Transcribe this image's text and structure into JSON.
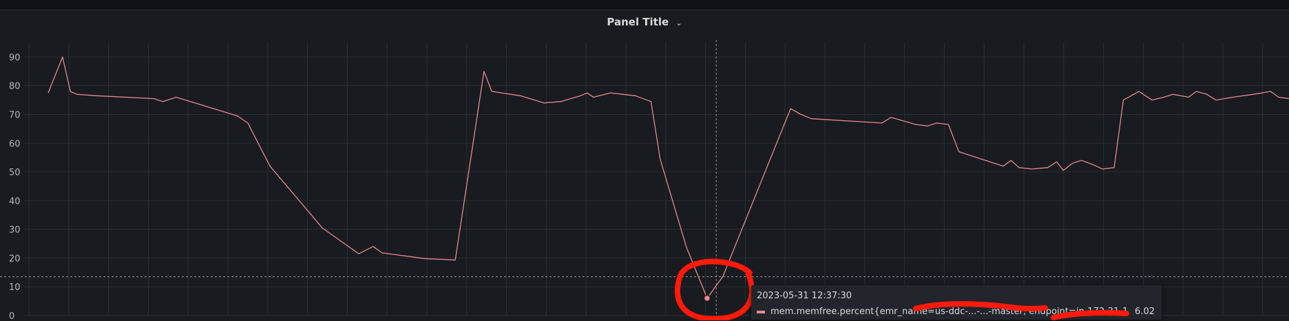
{
  "panel": {
    "title": "Panel Title",
    "chevron_icon": "chevron-down-icon"
  },
  "colors": {
    "series": "#ea8b8b",
    "annotation": "#ff1a0a",
    "grid": "#2b2e33",
    "text": "#b7b8ba"
  },
  "tooltip": {
    "time": "2023-05-31 12:37:30",
    "series_label": "mem.memfree.percent{emr_name=us-ddc-...-...-master, endpoint=ip-172-31-177-90}",
    "value": "6.02"
  },
  "chart_data": {
    "type": "line",
    "title": "Panel Title",
    "ylim": [
      0,
      95
    ],
    "yticks": [
      0,
      10,
      20,
      30,
      40,
      50,
      60,
      70,
      80,
      90
    ],
    "grid": true,
    "legend": "hidden",
    "crosshair": {
      "x": 51.2,
      "y": 13.5
    },
    "highlight_point": {
      "x": 50.5,
      "y": 6.02
    },
    "series": [
      {
        "color": "#ea8b8b",
        "x": [
          0,
          1.1,
          1.7,
          2.2,
          3.7,
          8.1,
          8.8,
          9.8,
          14.5,
          15.3,
          17.0,
          19.8,
          21.0,
          23.8,
          24.9,
          25.6,
          28.9,
          31.2,
          33.4,
          34.0,
          36.2,
          38.0,
          39.3,
          40.8,
          41.3,
          41.8,
          43.1,
          44.0,
          45.0,
          46.2,
          46.9,
          48.9,
          50.5,
          51.7,
          56.9,
          57.7,
          58.5,
          63.9,
          64.6,
          66.5,
          67.4,
          68.1,
          69.0,
          69.8,
          73.2,
          73.8,
          74.4,
          75.4,
          76.6,
          77.3,
          77.8,
          78.5,
          79.2,
          80.1,
          80.8,
          81.7,
          82.4,
          83.6,
          84.6,
          85.5,
          86.2,
          87.4,
          88.0,
          88.8,
          89.5,
          90.8,
          92.4,
          93.7,
          94.3,
          95.1
        ],
        "y": [
          77.5,
          90,
          78,
          77,
          76.5,
          75.5,
          74.5,
          76,
          69.5,
          67,
          52,
          37,
          30.5,
          21.5,
          24,
          21.8,
          19.8,
          19.3,
          85,
          78,
          76.5,
          74,
          74.5,
          76.5,
          77.5,
          76,
          77.5,
          77,
          76.5,
          74.5,
          54.5,
          24,
          6.02,
          13.5,
          72,
          70,
          68.5,
          67,
          69,
          66.5,
          66,
          67,
          66.5,
          57,
          52,
          54,
          51.5,
          51,
          51.5,
          53.5,
          50.5,
          53,
          54,
          52.5,
          51,
          51.5,
          75,
          78,
          75,
          76,
          77,
          76,
          78,
          77,
          75,
          76,
          77,
          78,
          76,
          75.5
        ]
      }
    ]
  }
}
